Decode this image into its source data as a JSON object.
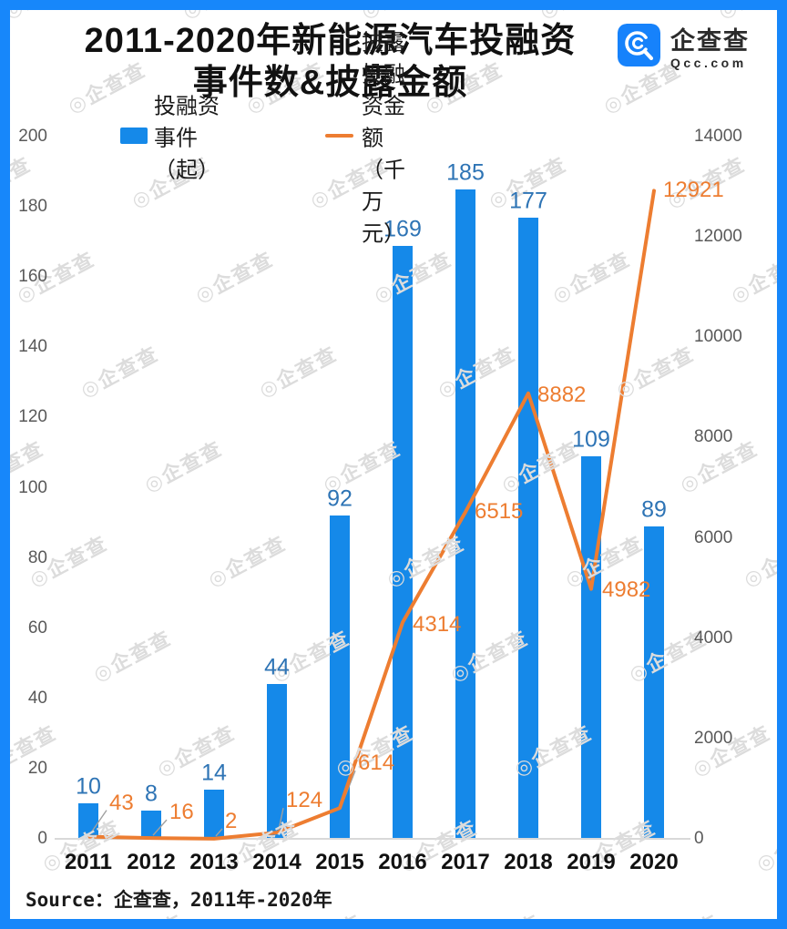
{
  "header": {
    "title_line1": "2011-2020年新能源汽车投融资",
    "title_line2": "事件数&披露金额",
    "logo": {
      "company": "企查查",
      "domain": "Qcc.com",
      "icon": "qcc-magnifier-logo-icon",
      "icon_color": "#1682FB"
    }
  },
  "legend": {
    "bar": {
      "label": "投融资事件（起）",
      "color": "#1589E9"
    },
    "line": {
      "label": "披露投融资金额（千万元）",
      "color": "#ED7D31"
    }
  },
  "chart_data": {
    "type": "bar",
    "subtype": "combo bar + line, dual axis",
    "title": "2011-2020年新能源汽车投融资事件数&披露金额",
    "categories": [
      "2011",
      "2012",
      "2013",
      "2014",
      "2015",
      "2016",
      "2017",
      "2018",
      "2019",
      "2020"
    ],
    "series": [
      {
        "name": "投融资事件（起）",
        "type": "bar",
        "axis": "left",
        "color": "#1589E9",
        "label_color": "#2E74B5",
        "values": [
          10,
          8,
          14,
          44,
          92,
          169,
          185,
          177,
          109,
          89
        ]
      },
      {
        "name": "披露投融资金额（千万元）",
        "type": "line",
        "axis": "right",
        "color": "#ED7D31",
        "label_color": "#ED7D31",
        "values": [
          43,
          16,
          2,
          124,
          614,
          4314,
          6515,
          8882,
          4982,
          12921
        ]
      }
    ],
    "left_axis": {
      "min": 0,
      "max": 200,
      "step": 20,
      "ticks": [
        0,
        20,
        40,
        60,
        80,
        100,
        120,
        140,
        160,
        180,
        200
      ]
    },
    "right_axis": {
      "min": 0,
      "max": 14000,
      "step": 2000,
      "ticks": [
        0,
        2000,
        4000,
        6000,
        8000,
        10000,
        12000,
        14000
      ]
    },
    "grid": "baseline only",
    "legend_position": "top"
  },
  "source": {
    "text": "Source：企查查，2011年-2020年"
  },
  "watermark": {
    "text": "企查查",
    "icon": "circled-qcc-icon"
  },
  "colors": {
    "frame": "#1787FA",
    "axis_text": "#595959",
    "baseline": "#d9d9d9",
    "leader_line": "#a0a0a0"
  }
}
